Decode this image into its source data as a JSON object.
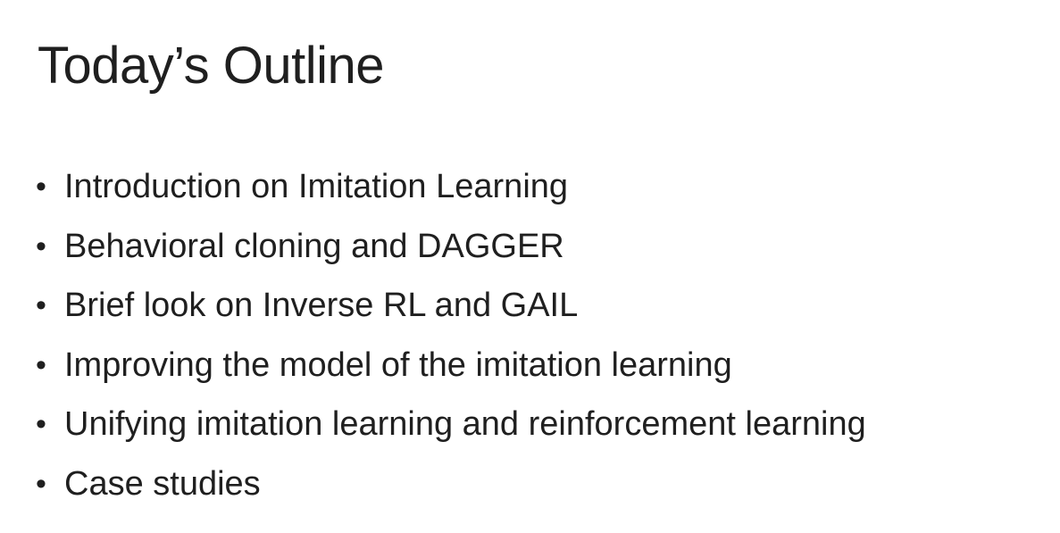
{
  "slide": {
    "title": "Today’s Outline",
    "bullet_glyph": "•",
    "items": [
      {
        "text": "Introduction on Imitation Learning"
      },
      {
        "text": "Behavioral cloning and DAGGER"
      },
      {
        "text": "Brief look on Inverse RL and GAIL"
      },
      {
        "text": "Improving the model of the imitation learning"
      },
      {
        "text": "Unifying imitation learning and reinforcement learning"
      },
      {
        "text": "Case studies"
      }
    ]
  }
}
